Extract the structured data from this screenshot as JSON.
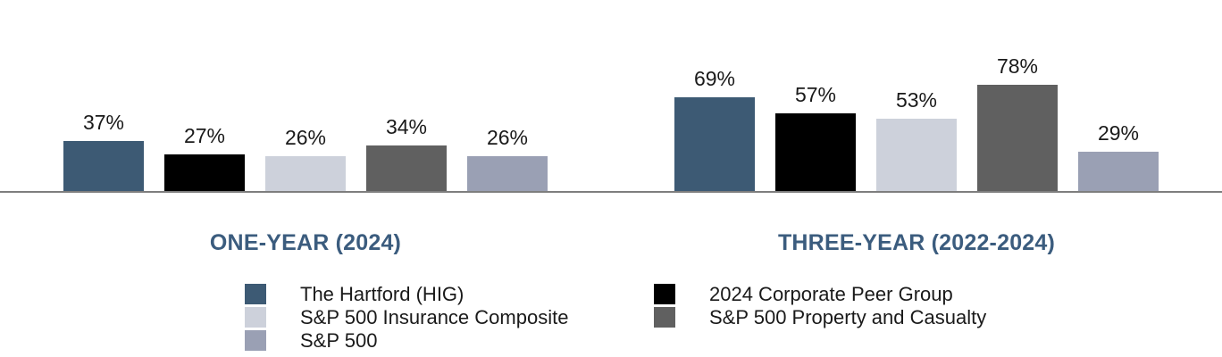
{
  "chart_data": {
    "type": "bar",
    "title": "",
    "categories": [
      "ONE-YEAR (2024)",
      "THREE-YEAR (2022-2024)"
    ],
    "series": [
      {
        "name": "The Hartford (HIG)",
        "color": "#3D5A74",
        "values": [
          37,
          69
        ],
        "value_labels": [
          "37%",
          "69%"
        ]
      },
      {
        "name": "2024 Corporate Peer Group",
        "color": "#000000",
        "values": [
          27,
          57
        ],
        "value_labels": [
          "27%",
          "57%"
        ]
      },
      {
        "name": "S&P 500 Insurance Composite",
        "color": "#CDD1DB",
        "values": [
          26,
          53
        ],
        "value_labels": [
          "26%",
          "53%"
        ]
      },
      {
        "name": "S&P 500 Property and Casualty",
        "color": "#606060",
        "values": [
          34,
          78
        ],
        "value_labels": [
          "34%",
          "78%"
        ]
      },
      {
        "name": "S&P 500",
        "color": "#9AA0B4",
        "values": [
          26,
          29
        ],
        "value_labels": [
          "26%",
          "29%"
        ]
      }
    ],
    "unit": "%",
    "ylim": [
      0,
      85
    ],
    "grid": false,
    "data_labels": true,
    "legend_position": "bottom",
    "legend_columns": [
      [
        0,
        2,
        4
      ],
      [
        1,
        3
      ]
    ],
    "colors": {
      "axis_line": "#7E7E7E",
      "category_label": "#3B5C7E",
      "value_label": "#1A1A1A",
      "background": "#FFFFFF"
    }
  }
}
